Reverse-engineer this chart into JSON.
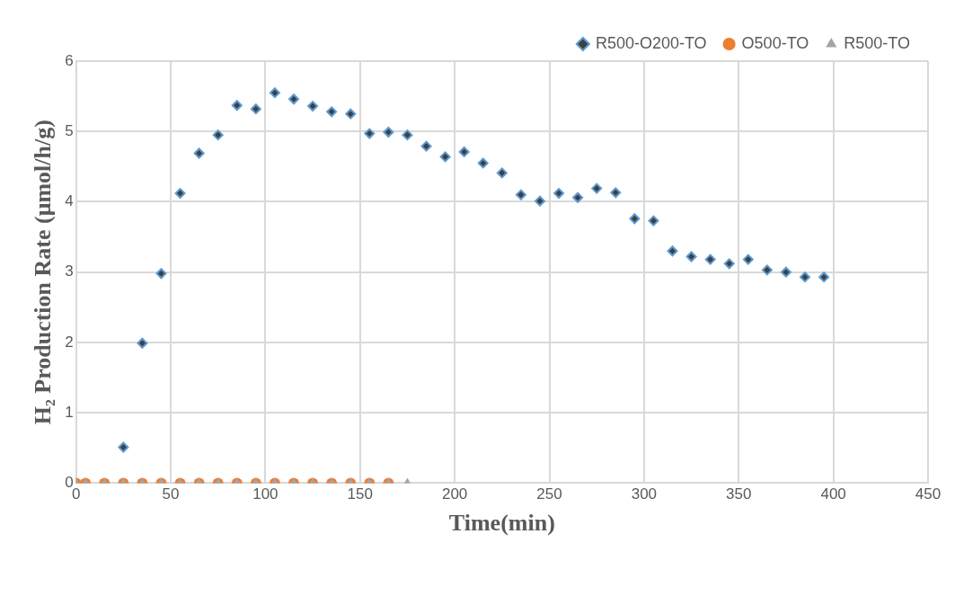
{
  "chart_data": {
    "type": "scatter",
    "xlabel": "Time(min)",
    "ylabel": "H₂ Production Rate (μmol/h/g)",
    "xlim": [
      0,
      450
    ],
    "xticks": [
      0,
      50,
      100,
      150,
      200,
      250,
      300,
      350,
      400,
      450
    ],
    "ylim": [
      0,
      6
    ],
    "yticks": [
      0,
      1,
      2,
      3,
      4,
      5,
      6
    ],
    "grid": true,
    "legend": "top right",
    "series": [
      {
        "name": "R500-O200-TO",
        "color": "#5b9bd5",
        "marker": "diamond",
        "x": [
          25,
          35,
          45,
          55,
          65,
          75,
          85,
          95,
          105,
          115,
          125,
          135,
          145,
          155,
          165,
          175,
          185,
          195,
          205,
          215,
          225,
          235,
          245,
          255,
          265,
          275,
          285,
          295,
          305,
          315,
          325,
          335,
          345,
          355,
          365,
          375,
          385,
          395
        ],
        "values": [
          0.51,
          1.99,
          2.98,
          4.12,
          4.69,
          4.95,
          5.37,
          5.32,
          5.55,
          5.46,
          5.36,
          5.28,
          5.25,
          4.97,
          4.99,
          4.95,
          4.79,
          4.64,
          4.71,
          4.55,
          4.41,
          4.1,
          4.01,
          4.12,
          4.06,
          4.19,
          4.13,
          3.76,
          3.73,
          3.3,
          3.22,
          3.18,
          3.12,
          3.18,
          3.03,
          3.0,
          2.93,
          2.93
        ]
      },
      {
        "name": "O500-TO",
        "color": "#ed7d31",
        "marker": "circle",
        "x": [
          0,
          5,
          15,
          25,
          35,
          45,
          55,
          65,
          75,
          85,
          95,
          105,
          115,
          125,
          135,
          145,
          155,
          165
        ],
        "values": [
          0,
          0,
          0,
          0,
          0,
          0,
          0,
          0,
          0,
          0,
          0,
          0,
          0,
          0,
          0,
          0,
          0,
          0
        ]
      },
      {
        "name": "R500-TO",
        "color": "#a5a5a5",
        "marker": "triangle",
        "x": [
          0,
          5,
          15,
          25,
          35,
          45,
          55,
          65,
          75,
          85,
          95,
          105,
          115,
          125,
          135,
          145,
          155,
          165,
          175
        ],
        "values": [
          0,
          0,
          0,
          0,
          0,
          0,
          0,
          0,
          0,
          0,
          0,
          0,
          0,
          0,
          0,
          0,
          0,
          0,
          0
        ]
      }
    ]
  }
}
